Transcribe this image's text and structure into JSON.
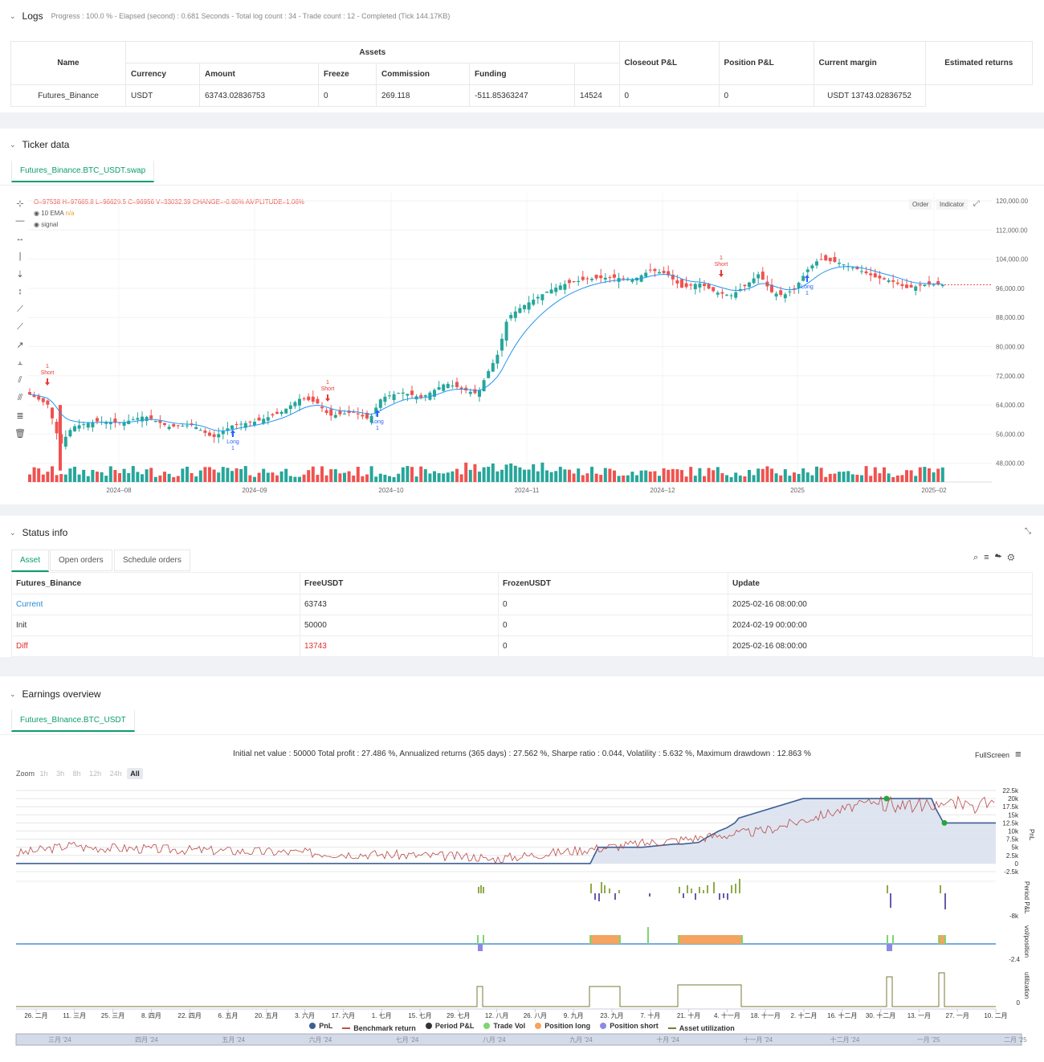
{
  "logs": {
    "title": "Logs",
    "progress": "Progress : 100.0 % - Elapsed (second) : 0.681 Seconds - Total log count : 34 - Trade count : 12 - Completed (Tick 144.17KB)",
    "headers": {
      "name": "Name",
      "assets": "Assets",
      "currency": "Currency",
      "amount": "Amount",
      "freeze": "Freeze",
      "commission": "Commission",
      "funding": "Funding",
      "closeout": "Closeout P&L",
      "position": "Position P&L",
      "margin": "Current margin",
      "estimated": "Estimated returns"
    },
    "row": {
      "name": "Futures_Binance",
      "currency": "USDT",
      "amount": "63743.02836753",
      "freeze": "0",
      "commission": "269.118",
      "funding": "-511.85363247",
      "closeout": "14524",
      "position": "0",
      "margin": "0",
      "estimated": "USDT 13743.02836752"
    }
  },
  "ticker": {
    "title": "Ticker data",
    "tab": "Futures_Binance.BTC_USDT.swap",
    "ohlc": "O=97538 H=97665.8 L=96629.5 C=96956 V=33032.39 CHANGE=-0.60% AMPLITUDE=1.06%",
    "ema_label": "10 EMA",
    "ema_value": "n/a",
    "signal_label": "signal",
    "btn_order": "Order",
    "btn_indicator": "Indicator",
    "y_ticks": [
      "120,000.00",
      "112,000.00",
      "104,000.00",
      "96,000.00",
      "88,000.00",
      "80,000.00",
      "72,000.00",
      "64,000.00",
      "56,000.00",
      "48,000.00"
    ],
    "x_ticks": [
      "2024–08",
      "2024–09",
      "2024–10",
      "2024–11",
      "2024–12",
      "2025",
      "2025–02"
    ],
    "signals": [
      {
        "t": "Short",
        "n": "1"
      },
      {
        "t": "Long",
        "n": "1"
      },
      {
        "t": "Short",
        "n": "1"
      },
      {
        "t": "Long",
        "n": "1"
      },
      {
        "t": "Short",
        "n": "1"
      },
      {
        "t": "Long",
        "n": "1"
      }
    ],
    "colors": {
      "up": "#26a69a",
      "down": "#ef5350",
      "ema": "#2196f3"
    }
  },
  "status": {
    "title": "Status info",
    "tabs": [
      "Asset",
      "Open orders",
      "Schedule orders"
    ],
    "headers": [
      "Futures_Binance",
      "FreeUSDT",
      "FrozenUSDT",
      "Update"
    ],
    "rows": [
      [
        "Current",
        "63743",
        "0",
        "2025-02-16 08:00:00"
      ],
      [
        "Init",
        "50000",
        "0",
        "2024-02-19 00:00:00"
      ],
      [
        "Diff",
        "13743",
        "0",
        "2025-02-16 08:00:00"
      ]
    ]
  },
  "earnings": {
    "title": "Earnings overview",
    "tab": "Futures_BInance.BTC_USDT",
    "summary": "Initial net value : 50000 Total profit : 27.486 %, Annualized returns (365 days) : 27.562 %, Sharpe ratio : 0.044, Volatility : 5.632 %, Maximum drawdown : 12.863 %",
    "fullscreen": "FullScreen",
    "zoom_label": "Zoom",
    "zoom": [
      "1h",
      "3h",
      "8h",
      "12h",
      "24h",
      "All"
    ],
    "pnl_ticks": [
      "22.5k",
      "20k",
      "17.5k",
      "15k",
      "12.5k",
      "10k",
      "7.5k",
      "5k",
      "2.5k",
      "0",
      "-2.5k"
    ],
    "axis_titles": [
      "PnL",
      "Period P&L",
      "vol/position",
      "utilization"
    ],
    "period_tick": "-8k",
    "vol_tick": "-2.4",
    "util_tick": "0",
    "x_ticks": [
      "26. 二月",
      "11. 三月",
      "25. 三月",
      "8. 四月",
      "22. 四月",
      "6. 五月",
      "20. 五月",
      "3. 六月",
      "17. 六月",
      "1. 七月",
      "15. 七月",
      "29. 七月",
      "12. 八月",
      "26. 八月",
      "9. 九月",
      "23. 九月",
      "7. 十月",
      "21. 十月",
      "4. 十一月",
      "18. 十一月",
      "2. 十二月",
      "16. 十二月",
      "30. 十二月",
      "13. 一月",
      "27. 一月",
      "10. 二月"
    ],
    "legend": [
      {
        "name": "PnL",
        "color": "#3d5f94"
      },
      {
        "name": "Benchmark return",
        "color": "#c0504d"
      },
      {
        "name": "Period P&L",
        "color": "#333333"
      },
      {
        "name": "Trade Vol",
        "color": "#7ed66f"
      },
      {
        "name": "Position long",
        "color": "#f4a460"
      },
      {
        "name": "Position short",
        "color": "#8a8ae6"
      },
      {
        "name": "Asset utilization",
        "color": "#7a7a3a"
      }
    ],
    "nav_ticks": [
      "三月 '24",
      "四月 '24",
      "五月 '24",
      "六月 '24",
      "七月 '24",
      "八月 '24",
      "九月 '24",
      "十月 '24",
      "十一月 '24",
      "十二月 '24",
      "一月 '25",
      "二月 '25"
    ]
  },
  "chart_data": {
    "type": "line",
    "series": [
      {
        "name": "PnL",
        "values": [
          0,
          0,
          0,
          0,
          0,
          0,
          0,
          0,
          0,
          0,
          0,
          0,
          5000,
          5000,
          5000,
          6000,
          6000,
          6500,
          8000,
          10000,
          11000,
          12500,
          14000,
          20000,
          20000,
          20000,
          20000,
          20000,
          17000,
          12500,
          12500,
          12500
        ]
      }
    ],
    "ylim": [
      -2500,
      22500
    ]
  }
}
